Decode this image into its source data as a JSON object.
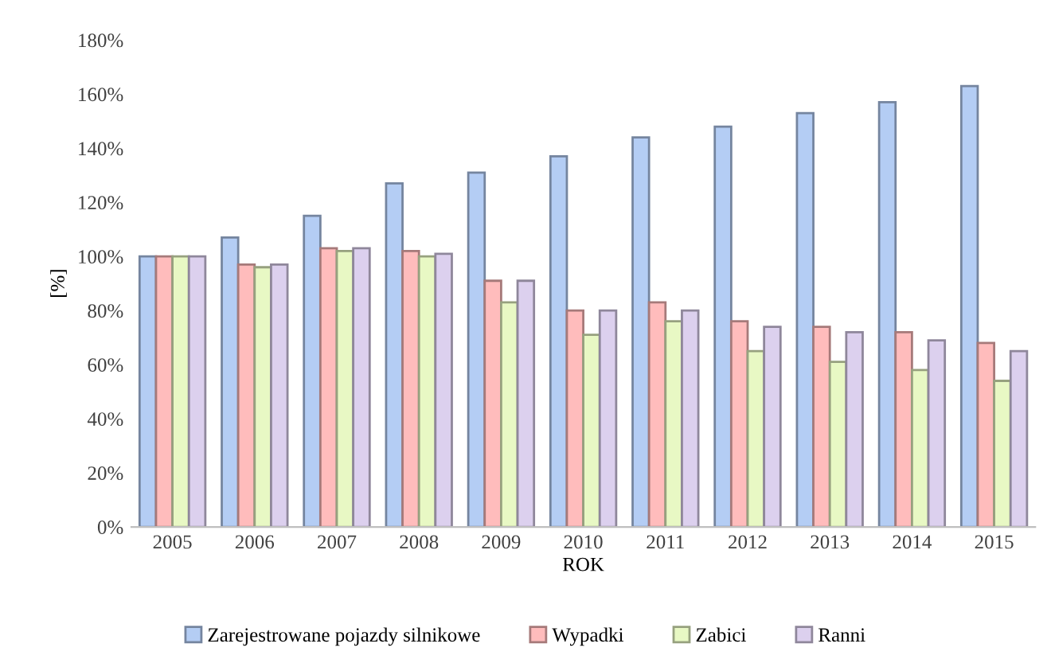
{
  "chart_data": {
    "type": "bar",
    "xlabel": "ROK",
    "ylabel": "[%]",
    "categories": [
      "2005",
      "2006",
      "2007",
      "2008",
      "2009",
      "2010",
      "2011",
      "2012",
      "2013",
      "2014",
      "2015"
    ],
    "series": [
      {
        "name": "Zarejestrowane pojazdy silnikowe",
        "color": "#b4cdf4",
        "values": [
          100,
          107,
          115,
          127,
          131,
          137,
          144,
          148,
          153,
          157,
          163
        ]
      },
      {
        "name": "Wypadki",
        "color": "#ffbcbc",
        "values": [
          100,
          97,
          103,
          102,
          91,
          80,
          83,
          76,
          74,
          72,
          68
        ]
      },
      {
        "name": "Zabici",
        "color": "#e8f8c4",
        "values": [
          100,
          96,
          102,
          100,
          83,
          71,
          76,
          65,
          61,
          58,
          54
        ]
      },
      {
        "name": "Ranni",
        "color": "#dcd0ee",
        "values": [
          100,
          97,
          103,
          101,
          91,
          80,
          80,
          74,
          72,
          69,
          65
        ]
      }
    ],
    "ylim": [
      0,
      180
    ],
    "yticks": [
      {
        "value": 0,
        "label": "0%"
      },
      {
        "value": 20,
        "label": "20%"
      },
      {
        "value": 40,
        "label": "40%"
      },
      {
        "value": 60,
        "label": "60%"
      },
      {
        "value": 80,
        "label": "80%"
      },
      {
        "value": 100,
        "label": "100%"
      },
      {
        "value": 120,
        "label": "120%"
      },
      {
        "value": 140,
        "label": "140%"
      },
      {
        "value": 160,
        "label": "160%"
      },
      {
        "value": 180,
        "label": "180%"
      }
    ],
    "grid": false,
    "legend": "bottom"
  }
}
